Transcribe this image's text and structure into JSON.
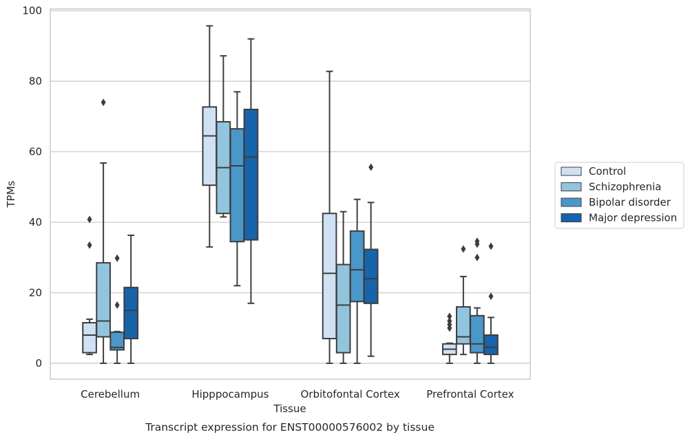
{
  "chart_data": {
    "type": "box",
    "xlabel": "Tissue",
    "ylabel": "TPMs",
    "caption": "Transcript expression for ENST00000576002 by tissue",
    "ylim": [
      -4.5,
      100.5
    ],
    "yticks": [
      0,
      20,
      40,
      60,
      80,
      100
    ],
    "grid": "horizontal",
    "legend_position": "right",
    "categories": [
      "Cerebellum",
      "Hipppocampus",
      "Orbitofontal Cortex",
      "Prefrontal Cortex"
    ],
    "series": [
      {
        "name": "Control",
        "color": "#cfe1f2",
        "boxes": [
          {
            "q1": 3.0,
            "median": 8.0,
            "q3": 11.5,
            "whisker_low": 2.5,
            "whisker_high": 12.5,
            "outliers": [
              33.5,
              40.8
            ]
          },
          {
            "q1": 50.5,
            "median": 64.5,
            "q3": 72.7,
            "whisker_low": 33.0,
            "whisker_high": 95.7,
            "outliers": []
          },
          {
            "q1": 7.0,
            "median": 25.5,
            "q3": 42.5,
            "whisker_low": 0.0,
            "whisker_high": 82.8,
            "outliers": []
          },
          {
            "q1": 2.5,
            "median": 4.0,
            "q3": 5.5,
            "whisker_low": 0.0,
            "whisker_high": 5.7,
            "outliers": [
              10.0,
              11.0,
              12.0,
              13.3
            ]
          }
        ]
      },
      {
        "name": "Schizophrenia",
        "color": "#93c4de",
        "boxes": [
          {
            "q1": 7.5,
            "median": 12.0,
            "q3": 28.5,
            "whisker_low": 0.0,
            "whisker_high": 56.8,
            "outliers": [
              74.0
            ]
          },
          {
            "q1": 42.5,
            "median": 55.5,
            "q3": 68.5,
            "whisker_low": 41.5,
            "whisker_high": 87.2,
            "outliers": []
          },
          {
            "q1": 3.0,
            "median": 16.5,
            "q3": 28.0,
            "whisker_low": 0.0,
            "whisker_high": 43.0,
            "outliers": []
          },
          {
            "q1": 5.5,
            "median": 7.5,
            "q3": 16.0,
            "whisker_low": 2.5,
            "whisker_high": 24.6,
            "outliers": [
              32.4
            ]
          }
        ]
      },
      {
        "name": "Bipolar disorder",
        "color": "#4a98c9",
        "boxes": [
          {
            "q1": 3.8,
            "median": 4.5,
            "q3": 8.8,
            "whisker_low": 0.0,
            "whisker_high": 9.0,
            "outliers": [
              16.5,
              29.8
            ]
          },
          {
            "q1": 34.5,
            "median": 56.0,
            "q3": 66.5,
            "whisker_low": 22.0,
            "whisker_high": 77.0,
            "outliers": []
          },
          {
            "q1": 17.5,
            "median": 26.5,
            "q3": 37.5,
            "whisker_low": 0.0,
            "whisker_high": 46.5,
            "outliers": []
          },
          {
            "q1": 3.0,
            "median": 5.5,
            "q3": 13.5,
            "whisker_low": 0.0,
            "whisker_high": 15.7,
            "outliers": [
              30.0,
              33.8,
              34.6
            ]
          }
        ]
      },
      {
        "name": "Major depression",
        "color": "#1764ab",
        "boxes": [
          {
            "q1": 7.0,
            "median": 15.0,
            "q3": 21.5,
            "whisker_low": 0.0,
            "whisker_high": 36.3,
            "outliers": []
          },
          {
            "q1": 35.0,
            "median": 58.5,
            "q3": 72.0,
            "whisker_low": 17.0,
            "whisker_high": 92.0,
            "outliers": []
          },
          {
            "q1": 17.0,
            "median": 24.0,
            "q3": 32.3,
            "whisker_low": 2.0,
            "whisker_high": 45.6,
            "outliers": [
              55.6
            ]
          },
          {
            "q1": 2.5,
            "median": 4.5,
            "q3": 8.0,
            "whisker_low": 0.0,
            "whisker_high": 13.0,
            "outliers": [
              19.0,
              33.2
            ]
          }
        ]
      }
    ]
  }
}
